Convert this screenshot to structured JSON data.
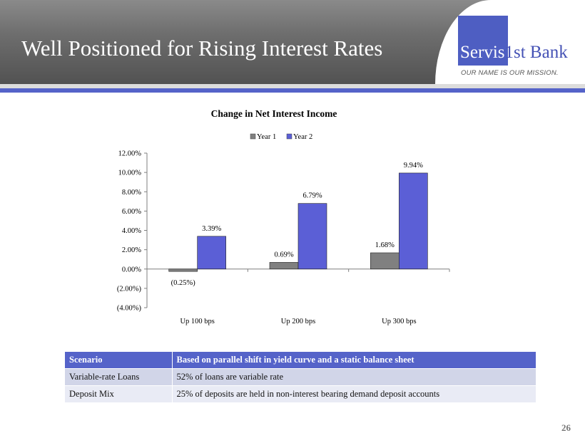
{
  "header": {
    "title": "Well Positioned for Rising Interest Rates"
  },
  "logo": {
    "name_part1": "Servis",
    "name_part2": "1st Bank",
    "tagline": "OUR NAME IS OUR MISSION."
  },
  "colors": {
    "accent": "#5563c9",
    "year1": "#808080",
    "year2": "#5b5fd6"
  },
  "chart_data": {
    "type": "bar",
    "title": "Change in Net Interest Income",
    "categories": [
      "Up 100 bps",
      "Up 200 bps",
      "Up 300 bps"
    ],
    "series": [
      {
        "name": "Year 1",
        "values": [
          -0.25,
          0.69,
          1.68
        ],
        "labels": [
          "(0.25%)",
          "0.69%",
          "1.68%"
        ]
      },
      {
        "name": "Year 2",
        "values": [
          3.39,
          6.79,
          9.94
        ],
        "labels": [
          "3.39%",
          "6.79%",
          "9.94%"
        ]
      }
    ],
    "ylim": [
      -4,
      12
    ],
    "yticks": [
      12,
      10,
      8,
      6,
      4,
      2,
      0,
      -2,
      -4
    ],
    "ytick_labels": [
      "12.00%",
      "10.00%",
      "8.00%",
      "6.00%",
      "4.00%",
      "2.00%",
      "0.00%",
      "(2.00%)",
      "(4.00%)"
    ],
    "legend_position": "top-center",
    "xlabel": "",
    "ylabel": ""
  },
  "table": {
    "headers": [
      "Scenario",
      "Based on parallel shift in yield curve and a static balance sheet"
    ],
    "rows": [
      [
        "Variable-rate Loans",
        "52% of loans are variable rate"
      ],
      [
        "Deposit Mix",
        "25% of deposits are held in non-interest bearing demand deposit accounts"
      ]
    ]
  },
  "page_number": "26"
}
